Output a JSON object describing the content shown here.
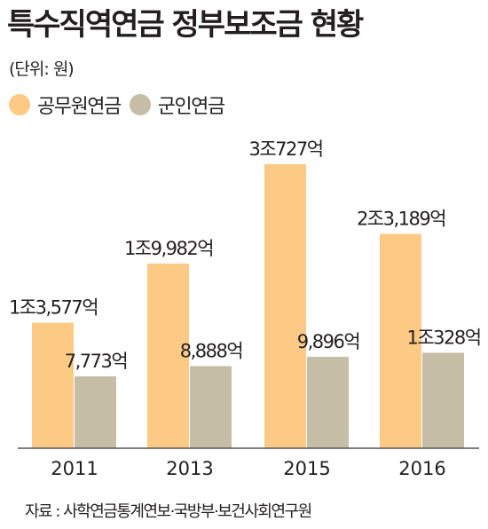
{
  "title": "특수직역연금 정부보조금 현황",
  "unit_note": "(단위: 원)",
  "source": "자료 : 사학연금통계연보·국방부·보건사회연구원",
  "colors": {
    "series1": "#fcca85",
    "series2": "#c6bda6",
    "axis": "#555555"
  },
  "chart_data": {
    "type": "bar",
    "title": "특수직역연금 정부보조금 현황",
    "unit": "억 원",
    "categories": [
      "2011",
      "2013",
      "2015",
      "2016"
    ],
    "series": [
      {
        "name": "공무원연금",
        "values": [
          13577,
          19982,
          30727,
          23189
        ],
        "labels": [
          "1조3,577억",
          "1조9,982억",
          "3조727억",
          "2조3,189억"
        ]
      },
      {
        "name": "군인연금",
        "values": [
          7773,
          8888,
          9896,
          10328
        ],
        "labels": [
          "7,773억",
          "8,888억",
          "9,896억",
          "1조328억"
        ]
      }
    ],
    "legend_position": "top-left",
    "grid": false
  }
}
